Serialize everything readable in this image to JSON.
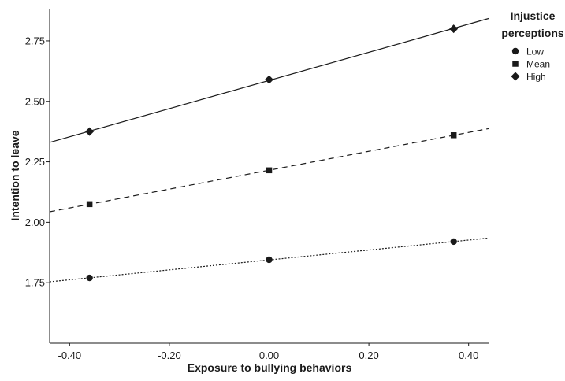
{
  "chart_data": {
    "type": "line",
    "xlabel": "Exposure to bullying behaviors",
    "ylabel": "Intention to leave",
    "xlim": [
      -0.44,
      0.44
    ],
    "ylim": [
      1.5,
      2.88
    ],
    "x_ticks": [
      -0.4,
      -0.2,
      0.0,
      0.2,
      0.4
    ],
    "x_tick_labels": [
      "-0.40",
      "-0.20",
      "0.00",
      "0.20",
      "0.40"
    ],
    "y_ticks": [
      1.75,
      2.0,
      2.25,
      2.5,
      2.75
    ],
    "y_tick_labels": [
      "1.75",
      "2.00",
      "2.25",
      "2.50",
      "2.75"
    ],
    "grid": false,
    "legend": {
      "title_lines": [
        "Injustice",
        "perceptions"
      ],
      "position": "top-right"
    },
    "series": [
      {
        "name": "Low",
        "marker": "circle",
        "dash": "dotted",
        "x": [
          -0.36,
          0.0,
          0.37
        ],
        "values": [
          1.77,
          1.845,
          1.92
        ]
      },
      {
        "name": "Mean",
        "marker": "square",
        "dash": "dashed",
        "x": [
          -0.36,
          0.0,
          0.37
        ],
        "values": [
          2.075,
          2.215,
          2.36
        ]
      },
      {
        "name": "High",
        "marker": "diamond",
        "dash": "solid",
        "x": [
          -0.36,
          0.0,
          0.37
        ],
        "values": [
          2.375,
          2.59,
          2.8
        ]
      }
    ],
    "colors": {
      "line": "#1a1a1a",
      "axis": "#1a1a1a",
      "background": "#ffffff"
    }
  }
}
